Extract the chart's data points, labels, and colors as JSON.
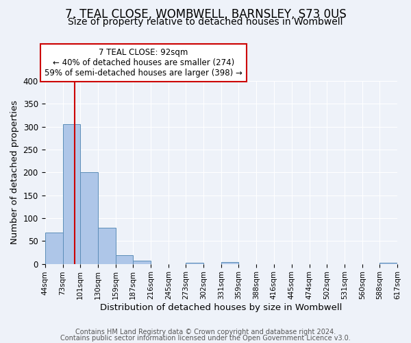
{
  "title": "7, TEAL CLOSE, WOMBWELL, BARNSLEY, S73 0US",
  "subtitle": "Size of property relative to detached houses in Wombwell",
  "xlabel": "Distribution of detached houses by size in Wombwell",
  "ylabel": "Number of detached properties",
  "bar_edges": [
    44,
    73,
    101,
    130,
    159,
    187,
    216,
    245,
    273,
    302,
    331,
    359,
    388,
    416,
    445,
    474,
    502,
    531,
    560,
    588,
    617
  ],
  "bar_heights": [
    68,
    305,
    200,
    79,
    19,
    7,
    0,
    0,
    3,
    0,
    4,
    0,
    0,
    0,
    0,
    0,
    0,
    0,
    0,
    3
  ],
  "bar_color": "#aec6e8",
  "bar_edge_color": "#5b8db8",
  "vline_x": 92,
  "vline_color": "#cc0000",
  "annotation_line1": "7 TEAL CLOSE: 92sqm",
  "annotation_line2": "← 40% of detached houses are smaller (274)",
  "annotation_line3": "59% of semi-detached houses are larger (398) →",
  "annotation_box_color": "#ffffff",
  "annotation_box_edge_color": "#cc0000",
  "ylim": [
    0,
    400
  ],
  "yticks": [
    0,
    50,
    100,
    150,
    200,
    250,
    300,
    350,
    400
  ],
  "tick_labels": [
    "44sqm",
    "73sqm",
    "101sqm",
    "130sqm",
    "159sqm",
    "187sqm",
    "216sqm",
    "245sqm",
    "273sqm",
    "302sqm",
    "331sqm",
    "359sqm",
    "388sqm",
    "416sqm",
    "445sqm",
    "474sqm",
    "502sqm",
    "531sqm",
    "560sqm",
    "588sqm",
    "617sqm"
  ],
  "footer1": "Contains HM Land Registry data © Crown copyright and database right 2024.",
  "footer2": "Contains public sector information licensed under the Open Government Licence v3.0.",
  "bg_color": "#eef2f9",
  "grid_color": "#ffffff",
  "title_fontsize": 12,
  "subtitle_fontsize": 10,
  "axis_label_fontsize": 9.5,
  "tick_fontsize": 7.5,
  "annotation_fontsize": 8.5,
  "footer_fontsize": 7
}
